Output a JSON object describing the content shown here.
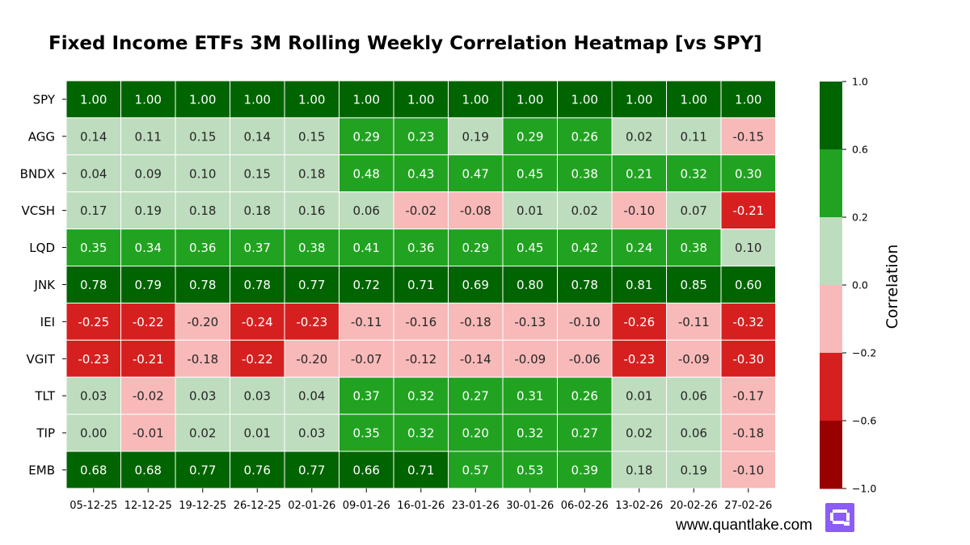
{
  "chart_data": {
    "type": "heatmap",
    "title": "Fixed Income ETFs 3M Rolling Weekly Correlation Heatmap [vs SPY]",
    "rows": [
      "SPY",
      "AGG",
      "BNDX",
      "VCSH",
      "LQD",
      "JNK",
      "IEI",
      "VGIT",
      "TLT",
      "TIP",
      "EMB"
    ],
    "columns": [
      "05-12-25",
      "12-12-25",
      "19-12-25",
      "26-12-25",
      "02-01-26",
      "09-01-26",
      "16-01-26",
      "23-01-26",
      "30-01-26",
      "06-02-26",
      "13-02-26",
      "20-02-26",
      "27-02-26"
    ],
    "values": [
      [
        1.0,
        1.0,
        1.0,
        1.0,
        1.0,
        1.0,
        1.0,
        1.0,
        1.0,
        1.0,
        1.0,
        1.0,
        1.0
      ],
      [
        0.14,
        0.11,
        0.15,
        0.14,
        0.15,
        0.29,
        0.23,
        0.19,
        0.29,
        0.26,
        0.02,
        0.11,
        -0.15
      ],
      [
        0.04,
        0.09,
        0.1,
        0.15,
        0.18,
        0.48,
        0.43,
        0.47,
        0.45,
        0.38,
        0.21,
        0.32,
        0.3
      ],
      [
        0.17,
        0.19,
        0.18,
        0.18,
        0.16,
        0.06,
        -0.02,
        -0.08,
        0.01,
        0.02,
        -0.1,
        0.07,
        -0.21
      ],
      [
        0.35,
        0.34,
        0.36,
        0.37,
        0.38,
        0.41,
        0.36,
        0.29,
        0.45,
        0.42,
        0.24,
        0.38,
        0.1
      ],
      [
        0.78,
        0.79,
        0.78,
        0.78,
        0.77,
        0.72,
        0.71,
        0.69,
        0.8,
        0.78,
        0.81,
        0.85,
        0.6
      ],
      [
        -0.25,
        -0.22,
        -0.2,
        -0.24,
        -0.23,
        -0.11,
        -0.16,
        -0.18,
        -0.13,
        -0.1,
        -0.26,
        -0.11,
        -0.32
      ],
      [
        -0.23,
        -0.21,
        -0.18,
        -0.22,
        -0.2,
        -0.07,
        -0.12,
        -0.14,
        -0.09,
        -0.06,
        -0.23,
        -0.09,
        -0.3
      ],
      [
        0.03,
        -0.02,
        0.03,
        0.03,
        0.04,
        0.37,
        0.32,
        0.27,
        0.31,
        0.26,
        0.01,
        0.06,
        -0.17
      ],
      [
        0.0,
        -0.01,
        0.02,
        0.01,
        0.03,
        0.35,
        0.32,
        0.2,
        0.32,
        0.27,
        0.02,
        0.06,
        -0.18
      ],
      [
        0.68,
        0.68,
        0.77,
        0.76,
        0.77,
        0.66,
        0.71,
        0.57,
        0.53,
        0.39,
        0.18,
        0.19,
        -0.1
      ]
    ],
    "color_scale": {
      "label": "Correlation",
      "range": [
        -1.0,
        1.0
      ],
      "boundaries": [
        -1.0,
        -0.6,
        -0.2,
        0.0,
        0.2,
        0.6,
        1.0
      ],
      "tick_labels": [
        "1.0",
        "0.6",
        "0.2",
        "0.0",
        "−0.2",
        "−0.6",
        "−1.0"
      ],
      "colors": [
        "#990000",
        "#d62020",
        "#f8b9b9",
        "#bedcbe",
        "#21a321",
        "#006400"
      ],
      "text_colors": [
        "#ffffff",
        "#ffffff",
        "#262626",
        "#262626",
        "#ffffff",
        "#ffffff"
      ]
    }
  },
  "watermark": {
    "text": "www.quantlake.com",
    "logo_icon": "quantlake-logo-icon",
    "logo_color": "#8b5cf6"
  }
}
